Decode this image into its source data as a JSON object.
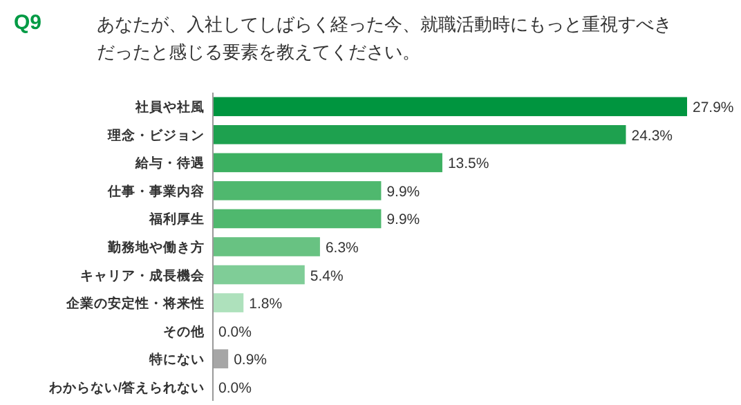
{
  "chart_data": {
    "type": "bar",
    "orientation": "horizontal",
    "title": "Q9",
    "subtitle": "あなたが、入社してしばらく経った今、就職活動時にもっと重視すべきだったと感じる要素を教えてください。",
    "categories": [
      "社員や社風",
      "理念・ビジョン",
      "給与・待遇",
      "仕事・事業内容",
      "福利厚生",
      "勤務地や働き方",
      "キャリア・成長機会",
      "企業の安定性・将来性",
      "その他",
      "特にない",
      "わからない/答えられない"
    ],
    "values": [
      27.9,
      24.3,
      13.5,
      9.9,
      9.9,
      6.3,
      5.4,
      1.8,
      0.0,
      0.9,
      0.0
    ],
    "colors": [
      "#00953f",
      "#1ea14f",
      "#3cb061",
      "#4fb86e",
      "#4fb86e",
      "#68c282",
      "#7fcd97",
      "#aee1bc",
      "#aee1bc",
      "#a6a6a6",
      "#a6a6a6"
    ],
    "value_labels": [
      "27.9%",
      "24.3%",
      "13.5%",
      "9.9%",
      "9.9%",
      "6.3%",
      "5.4%",
      "1.8%",
      "0.0%",
      "0.9%",
      "0.0%"
    ]
  }
}
